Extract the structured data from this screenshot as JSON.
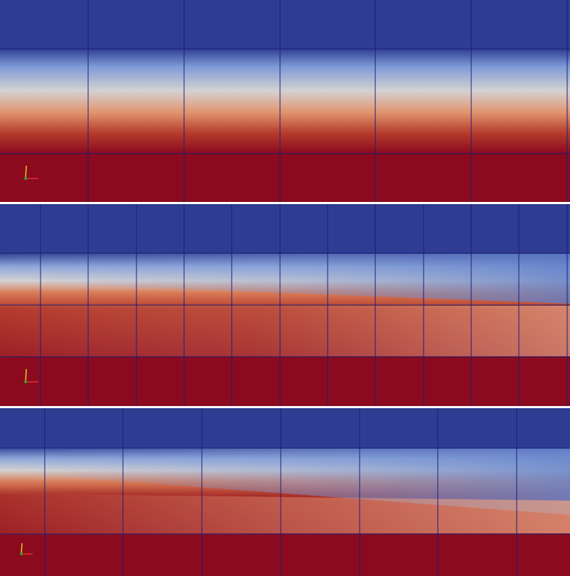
{
  "colors": {
    "cold": "#2f3f94",
    "cold_light": "#7f9bd6",
    "neutral": "#d9d6d3",
    "warm_light": "#e0906a",
    "hot": "#b43a2c",
    "hot_deep": "#8b0a1e",
    "grid": "#1a1f78",
    "separator": "#ffffff"
  },
  "panels": [
    {
      "name": "mesh-panel-coarse"
    },
    {
      "name": "mesh-panel-refined"
    },
    {
      "name": "mesh-panel-stretched"
    }
  ],
  "orientation_axes": {
    "x_color": "#e03030",
    "y_color": "#e8d020",
    "z_color": "#30a030"
  }
}
